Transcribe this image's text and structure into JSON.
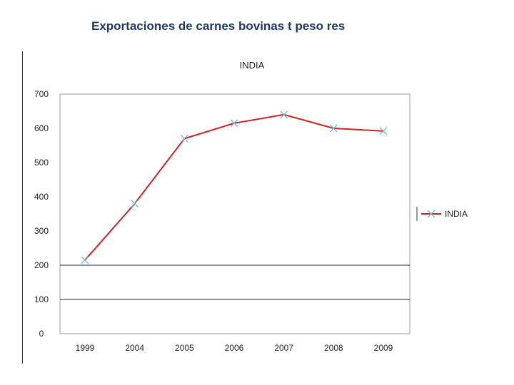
{
  "slide": {
    "title": "Exportaciones de carnes bovinas t peso res"
  },
  "chart_data": {
    "type": "line",
    "title": "INDIA",
    "categories": [
      "1999",
      "2004",
      "2005",
      "2006",
      "2007",
      "2008",
      "2009"
    ],
    "series": [
      {
        "name": "INDIA",
        "values": [
          215,
          380,
          570,
          615,
          640,
          600,
          592
        ],
        "color": "#cc2222",
        "marker_color": "#6fb7d6",
        "marker": "x"
      }
    ],
    "y_ticks": [
      0,
      100,
      200,
      300,
      400,
      500,
      600,
      700
    ],
    "ylim": [
      0,
      700
    ],
    "gridlines_at": [
      100,
      200
    ],
    "legend_position": "right",
    "xlabel": "",
    "ylabel": ""
  }
}
